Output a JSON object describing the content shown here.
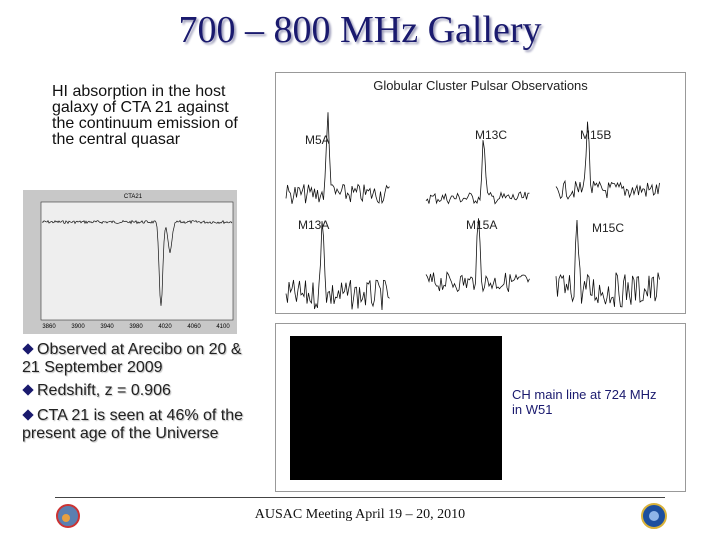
{
  "header": {
    "title": "700 – 800 MHz  Gallery"
  },
  "hi_absorption": {
    "text": "HI absorption in the host galaxy of CTA 21 against the continuum emission of the central quasar",
    "plot": {
      "title": "CTA21",
      "xticks": [
        "3860",
        "3900",
        "3940",
        "3980",
        "4020",
        "4060",
        "4100"
      ]
    }
  },
  "bullets": [
    "Observed at Arecibo on 20 & 21 September 2009",
    "Redshift, z = 0.906",
    "CTA 21 is seen at 46% of the present age of the Universe"
  ],
  "pulsars": {
    "title": "Globular Cluster Pulsar Observations",
    "panels": [
      "M5A",
      "M13C",
      "M15B",
      "M13A",
      "M15A",
      "M15C"
    ]
  },
  "ch_line": {
    "caption": "CH main line at 724 MHz in W51"
  },
  "footer": {
    "text": "AUSAC Meeting April 19 – 20, 2010"
  }
}
